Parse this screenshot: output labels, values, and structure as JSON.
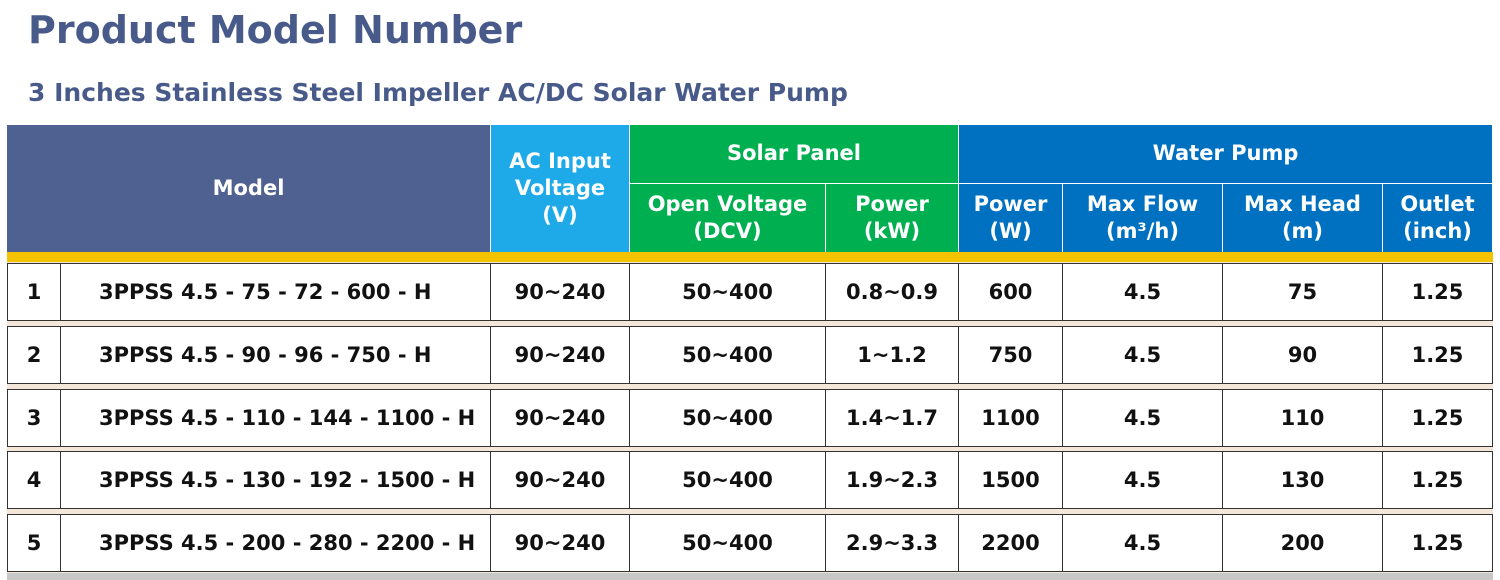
{
  "header": {
    "title": "Product Model Number",
    "subtitle": "3 Inches Stainless Steel Impeller AC/DC Solar Water Pump"
  },
  "table": {
    "model_header": "Model",
    "groups": [
      "Solar Panel",
      "Water Pump"
    ],
    "columns": [
      {
        "label": "AC Input Voltage",
        "unit": "(V)"
      },
      {
        "label": "Open Voltage",
        "unit": "(DCV)"
      },
      {
        "label": "Power",
        "unit": "(kW)"
      },
      {
        "label": "Power",
        "unit": "(W)"
      },
      {
        "label": "Max Flow",
        "unit": "(m³/h)"
      },
      {
        "label": "Max Head",
        "unit": "(m)"
      },
      {
        "label": "Outlet",
        "unit": "(inch)"
      }
    ],
    "rows": [
      [
        1,
        "3PPSS 4.5 - 75 - 72 - 600 - H",
        "90~240",
        "50~400",
        "0.8~0.9",
        600,
        4.5,
        75,
        1.25
      ],
      [
        2,
        "3PPSS 4.5 - 90 - 96 - 750 - H",
        "90~240",
        "50~400",
        "1~1.2",
        750,
        4.5,
        90,
        1.25
      ],
      [
        3,
        "3PPSS 4.5 - 110 - 144 - 1100 - H",
        "90~240",
        "50~400",
        "1.4~1.7",
        1100,
        4.5,
        110,
        1.25
      ],
      [
        4,
        "3PPSS 4.5 - 130 - 192 - 1500 - H",
        "90~240",
        "50~400",
        "1.9~2.3",
        1500,
        4.5,
        130,
        1.25
      ],
      [
        5,
        "3PPSS 4.5 - 200 - 280 - 2200 - H",
        "90~240",
        "50~400",
        "2.9~3.3",
        2200,
        4.5,
        200,
        1.25
      ]
    ]
  }
}
